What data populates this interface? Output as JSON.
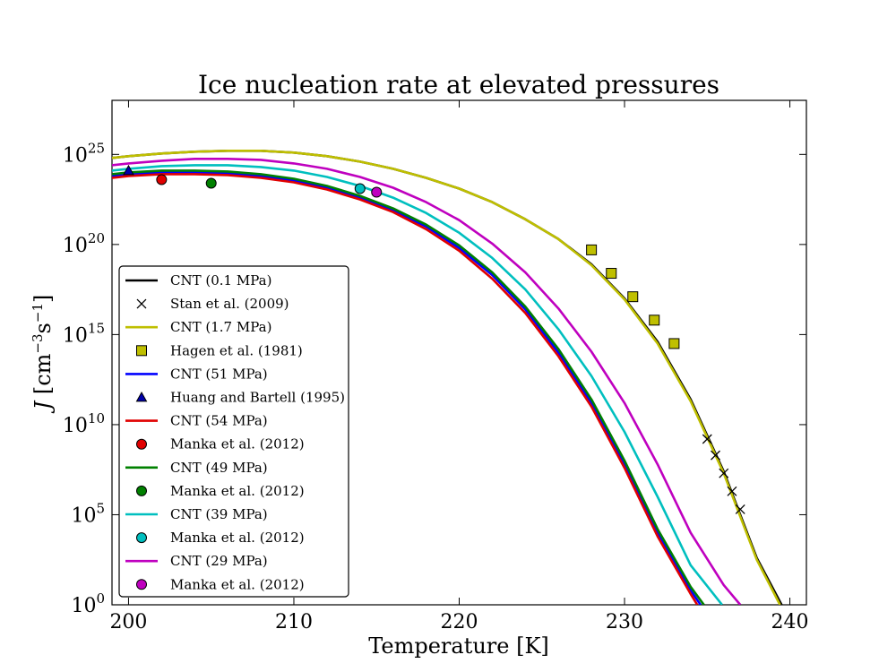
{
  "chart_data": {
    "type": "line",
    "title": "Ice nucleation rate at elevated pressures",
    "xlabel": "Temperature [K]",
    "ylabel": "J [cm⁻³s⁻¹]",
    "ylabel_parts": {
      "var": "J",
      "unit_pre": " [cm",
      "exp1": "−3",
      "mid": "s",
      "exp2": "−1",
      "unit_post": "]"
    },
    "xlim": [
      199,
      241
    ],
    "ylim_log10": [
      0,
      28
    ],
    "yscale": "log",
    "grid": false,
    "legend_position": "lower-left",
    "x_ticks": [
      {
        "value": 200,
        "label": "200"
      },
      {
        "value": 210,
        "label": "210"
      },
      {
        "value": 220,
        "label": "220"
      },
      {
        "value": 230,
        "label": "230"
      },
      {
        "value": 240,
        "label": "240"
      }
    ],
    "y_ticks": [
      {
        "exp": 0,
        "base": "10",
        "sup": "0"
      },
      {
        "exp": 5,
        "base": "10",
        "sup": "5"
      },
      {
        "exp": 10,
        "base": "10",
        "sup": "10"
      },
      {
        "exp": 15,
        "base": "10",
        "sup": "15"
      },
      {
        "exp": 20,
        "base": "10",
        "sup": "20"
      },
      {
        "exp": 25,
        "base": "10",
        "sup": "25"
      }
    ],
    "series": [
      {
        "name": "CNT (0.1 MPa)",
        "kind": "line",
        "color": "#000000",
        "x": [
          199,
          200,
          202,
          204,
          206,
          208,
          210,
          212,
          214,
          216,
          218,
          220,
          222,
          224,
          226,
          228,
          230,
          232,
          234,
          236,
          238,
          239.5
        ],
        "log10_y": [
          24.8,
          24.9,
          25.05,
          25.15,
          25.2,
          25.2,
          25.1,
          24.9,
          24.6,
          24.2,
          23.7,
          23.1,
          22.35,
          21.4,
          20.3,
          18.9,
          17.0,
          14.6,
          11.4,
          7.4,
          2.6,
          0
        ]
      },
      {
        "name": "Stan et al. (2009)",
        "kind": "marker",
        "marker": "x",
        "color": "#000000",
        "x": [
          235.0,
          235.5,
          236.0,
          236.5,
          237.0
        ],
        "log10_y": [
          9.2,
          8.3,
          7.3,
          6.3,
          5.3
        ]
      },
      {
        "name": "CNT (1.7 MPa)",
        "kind": "line",
        "color": "#bfbf00",
        "x": [
          199,
          200,
          202,
          204,
          206,
          208,
          210,
          212,
          214,
          216,
          218,
          220,
          222,
          224,
          226,
          228,
          230,
          232,
          234,
          236,
          238,
          239.4
        ],
        "log10_y": [
          24.8,
          24.9,
          25.05,
          25.15,
          25.2,
          25.2,
          25.1,
          24.9,
          24.6,
          24.2,
          23.7,
          23.1,
          22.35,
          21.4,
          20.3,
          18.85,
          16.95,
          14.5,
          11.3,
          7.3,
          2.5,
          0
        ]
      },
      {
        "name": "Hagen et al. (1981)",
        "kind": "marker",
        "marker": "square",
        "color": "#bfbf00",
        "x": [
          228.0,
          229.2,
          230.5,
          231.8,
          233.0
        ],
        "log10_y": [
          19.7,
          18.4,
          17.1,
          15.8,
          14.5
        ]
      },
      {
        "name": "CNT (51 MPa)",
        "kind": "line",
        "color": "#0000ff",
        "x": [
          199,
          200,
          202,
          204,
          206,
          208,
          210,
          212,
          214,
          216,
          218,
          220,
          222,
          224,
          226,
          228,
          230,
          232,
          234,
          234.6
        ],
        "log10_y": [
          23.8,
          23.9,
          24.0,
          24.0,
          23.95,
          23.8,
          23.55,
          23.15,
          22.6,
          21.9,
          21.0,
          19.8,
          18.3,
          16.4,
          14.0,
          11.2,
          7.8,
          4.0,
          0.8,
          0
        ]
      },
      {
        "name": "Huang and Bartell (1995)",
        "kind": "marker",
        "marker": "triangle",
        "color": "#0000aa",
        "x": [
          200.0
        ],
        "log10_y": [
          24.1
        ]
      },
      {
        "name": "CNT (54 MPa)",
        "kind": "line",
        "color": "#e00000",
        "x": [
          199,
          200,
          202,
          204,
          206,
          208,
          210,
          212,
          214,
          216,
          218,
          220,
          222,
          224,
          226,
          228,
          230,
          232,
          234,
          234.4
        ],
        "log10_y": [
          23.7,
          23.8,
          23.9,
          23.9,
          23.85,
          23.7,
          23.45,
          23.05,
          22.5,
          21.8,
          20.85,
          19.65,
          18.1,
          16.2,
          13.8,
          11.0,
          7.6,
          3.8,
          0.6,
          0
        ]
      },
      {
        "name": "Manka et al. (2012)",
        "kind": "marker",
        "marker": "circle",
        "color": "#e00000",
        "x": [
          202.0
        ],
        "log10_y": [
          23.6
        ]
      },
      {
        "name": "CNT (49 MPa)",
        "kind": "line",
        "color": "#008000",
        "x": [
          199,
          200,
          202,
          204,
          206,
          208,
          210,
          212,
          214,
          216,
          218,
          220,
          222,
          224,
          226,
          228,
          230,
          232,
          234,
          234.8
        ],
        "log10_y": [
          23.9,
          24.0,
          24.1,
          24.1,
          24.05,
          23.9,
          23.65,
          23.25,
          22.7,
          22.0,
          21.1,
          19.95,
          18.45,
          16.55,
          14.2,
          11.4,
          8.0,
          4.2,
          1.0,
          0
        ]
      },
      {
        "name": "Manka et al. (2012)",
        "kind": "marker",
        "marker": "circle",
        "color": "#008000",
        "x": [
          205.0
        ],
        "log10_y": [
          23.4
        ]
      },
      {
        "name": "CNT (39 MPa)",
        "kind": "line",
        "color": "#00bfbf",
        "x": [
          199,
          200,
          202,
          204,
          206,
          208,
          210,
          212,
          214,
          216,
          218,
          220,
          222,
          224,
          226,
          228,
          230,
          232,
          234,
          235.9
        ],
        "log10_y": [
          24.1,
          24.2,
          24.35,
          24.4,
          24.4,
          24.3,
          24.1,
          23.75,
          23.25,
          22.6,
          21.75,
          20.65,
          19.25,
          17.5,
          15.3,
          12.7,
          9.6,
          6.0,
          2.2,
          0
        ]
      },
      {
        "name": "Manka et al. (2012)",
        "kind": "marker",
        "marker": "circle",
        "color": "#00bfbf",
        "x": [
          214.0
        ],
        "log10_y": [
          23.1
        ]
      },
      {
        "name": "CNT (29 MPa)",
        "kind": "line",
        "color": "#bf00bf",
        "x": [
          199,
          200,
          202,
          204,
          206,
          208,
          210,
          212,
          214,
          216,
          218,
          220,
          222,
          224,
          226,
          228,
          230,
          232,
          234,
          236,
          237.0
        ],
        "log10_y": [
          24.4,
          24.5,
          24.65,
          24.75,
          24.75,
          24.7,
          24.5,
          24.2,
          23.75,
          23.15,
          22.35,
          21.35,
          20.05,
          18.45,
          16.45,
          14.05,
          11.2,
          7.8,
          4.0,
          1.1,
          0
        ]
      },
      {
        "name": "Manka et al. (2012)",
        "kind": "marker",
        "marker": "circle",
        "color": "#bf00bf",
        "x": [
          215.0
        ],
        "log10_y": [
          22.9
        ]
      }
    ]
  }
}
